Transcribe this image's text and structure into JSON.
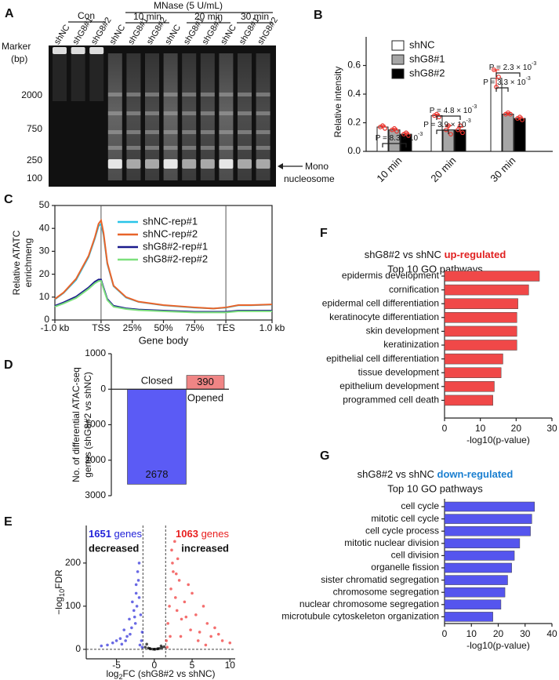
{
  "panel_a": {
    "label": "A",
    "mnase": "MNase (5 U/mL)",
    "con": "Con",
    "times": [
      "10 min",
      "20 min",
      "30 min"
    ],
    "lanes": [
      "shNC",
      "shG8#1",
      "shG8#2",
      "shNC",
      "shG8#1",
      "shG8#2",
      "shNC",
      "shG8#1",
      "shG8#2",
      "shNC",
      "shG8#1",
      "shG8#2"
    ],
    "marker": {
      "title": "Marker",
      "unit": "(bp)",
      "sizes": [
        "2000",
        "750",
        "250",
        "100"
      ]
    },
    "arrow_label": [
      "Mono",
      "nucleosome"
    ]
  },
  "chart_data": [
    {
      "type": "bar",
      "label": "B",
      "ylabel": "Relative intensity",
      "categories": [
        "10 min",
        "20 min",
        "30 min"
      ],
      "series": [
        {
          "name": "shNC",
          "color": "#ffffff",
          "values": [
            0.17,
            0.25,
            0.51
          ],
          "errors": [
            0.01,
            0.01,
            0.06
          ],
          "replicates": [
            [
              0.17,
              0.18,
              0.16
            ],
            [
              0.25,
              0.26,
              0.24
            ],
            [
              0.57,
              0.45,
              0.52
            ]
          ]
        },
        {
          "name": "shG8#1",
          "color": "#a6a6a6",
          "values": [
            0.15,
            0.15,
            0.26
          ],
          "errors": [
            0.01,
            0.03,
            0.01
          ],
          "replicates": [
            [
              0.15,
              0.16,
              0.14
            ],
            [
              0.15,
              0.18,
              0.12
            ],
            [
              0.26,
              0.27,
              0.26
            ]
          ]
        },
        {
          "name": "shG8#2",
          "color": "#000000",
          "values": [
            0.12,
            0.15,
            0.23
          ],
          "errors": [
            0.01,
            0.02,
            0.01
          ],
          "replicates": [
            [
              0.12,
              0.13,
              0.11
            ],
            [
              0.15,
              0.18,
              0.13
            ],
            [
              0.23,
              0.24,
              0.22
            ]
          ]
        }
      ],
      "replicate_color": "#e8312a",
      "ylim": [
        0,
        0.8
      ],
      "yticks": [
        {
          "value": 0,
          "label": "0.0"
        },
        0.2,
        0.4,
        0.6
      ],
      "legend": "top-left",
      "annotations": [
        {
          "text": "P = 8.3 × 10",
          "sup": "-3"
        },
        {
          "text": "P = 4.8 × 10",
          "sup": "-3"
        },
        {
          "text": "P = 3.9 × 10",
          "sup": "-3"
        },
        {
          "text": "P = 2.3 × 10",
          "sup": "-3"
        },
        {
          "text": "P = 3.3 × 10",
          "sup": "-3"
        }
      ]
    },
    {
      "type": "line",
      "label": "C",
      "ylabel": [
        "Relative ATATC",
        "enrichmeng"
      ],
      "xlabel": "Gene body",
      "x": [
        -37,
        -30,
        -20,
        -10,
        -5,
        -2,
        0,
        2,
        5,
        10,
        20,
        30,
        50,
        75,
        90,
        100,
        110,
        120,
        137
      ],
      "series": [
        {
          "name": "shNC-rep#1",
          "color": "#29c4e8",
          "values": [
            9,
            11.8,
            17.5,
            27.5,
            35.5,
            41,
            42,
            37,
            24.5,
            14.8,
            9.8,
            7.9,
            6.4,
            5.4,
            5,
            5.4,
            6.4,
            6.4,
            6.7
          ]
        },
        {
          "name": "shNC-rep#2",
          "color": "#e8642a",
          "values": [
            9.2,
            12,
            18,
            28,
            36,
            42,
            43.5,
            38,
            25,
            15,
            10,
            8,
            6.5,
            5.5,
            5,
            5.5,
            6.5,
            6.5,
            6.8
          ]
        },
        {
          "name": "shG8#2-rep#1",
          "color": "#1a1a8c",
          "values": [
            6.2,
            7.7,
            10.2,
            14.2,
            16.7,
            17.7,
            17.7,
            14.2,
            9.2,
            6.2,
            5.1,
            4.6,
            4.1,
            3.6,
            3.6,
            3.6,
            4.1,
            4.1,
            4.1
          ]
        },
        {
          "name": "shG8#2-rep#2",
          "color": "#7de07d",
          "values": [
            5.8,
            7.2,
            9.6,
            13.6,
            16,
            17,
            17.1,
            13.6,
            8.7,
            5.8,
            4.8,
            4.3,
            3.8,
            3.3,
            3.3,
            3.3,
            3.8,
            3.8,
            3.8
          ]
        }
      ],
      "xlim": [
        -37,
        137
      ],
      "xticks": [
        {
          "value": -37,
          "label": "-1.0 kb"
        },
        {
          "value": 0,
          "label": "TSS"
        },
        {
          "value": 25,
          "label": "25%"
        },
        {
          "value": 50,
          "label": "50%"
        },
        {
          "value": 75,
          "label": "75%"
        },
        {
          "value": 100,
          "label": "TES"
        },
        {
          "value": 137,
          "label": "1.0 kb"
        }
      ],
      "vlines": [
        0,
        100
      ],
      "ylim": [
        0,
        50
      ],
      "yticks": [
        0,
        10,
        20,
        30,
        40,
        50
      ],
      "legend": "top-center"
    },
    {
      "type": "bar",
      "label": "D",
      "ylabel": [
        "No. of differential ATAC-seq",
        "genes (shG8#2 vs shNC)"
      ],
      "categories": [
        "Closed",
        "Opened"
      ],
      "values": [
        -2678,
        390
      ],
      "value_labels": [
        "2678",
        "390"
      ],
      "colors": [
        "#5b5bf5",
        "#f08585"
      ],
      "ylim": [
        -3000,
        1000
      ],
      "yticks": [
        {
          "value": -3000,
          "label": "3000"
        },
        {
          "value": -2000,
          "label": "2000"
        },
        {
          "value": -1000,
          "label": "1000"
        },
        0,
        1000
      ]
    },
    {
      "type": "scatter",
      "label": "E",
      "xlabel": {
        "main": "log",
        "sub": "2",
        "rest": "FC (shG8#2 vs shNC)"
      },
      "ylabel": {
        "main": "−log",
        "sub": "10",
        "rest": "FDR"
      },
      "series": [
        {
          "color": "#2a2ad8",
          "x": [
            -1.6,
            -1.8,
            -2.0,
            -2.1,
            -2.3,
            -2.5,
            -2.7,
            -3.0,
            -3.3,
            -3.6,
            -4.0,
            -4.5,
            -5.0,
            -5.5,
            -6.2,
            -7.0,
            -1.7,
            -1.9,
            -2.2,
            -2.4,
            -2.6,
            -2.9,
            -3.2,
            -3.8,
            -4.3,
            -1.6,
            -2.0,
            -2.4
          ],
          "values": [
            40,
            80,
            120,
            160,
            100,
            60,
            90,
            50,
            70,
            30,
            45,
            25,
            20,
            15,
            10,
            8,
            20,
            10,
            180,
            130,
            75,
            110,
            35,
            20,
            12,
            5,
            200,
            150
          ]
        },
        {
          "color": "#f03030",
          "x": [
            1.6,
            1.8,
            2.0,
            2.2,
            2.5,
            2.8,
            3.0,
            3.3,
            3.6,
            4.0,
            4.5,
            5.0,
            5.5,
            6.0,
            6.5,
            7.0,
            7.5,
            8.0,
            9.0,
            10.0,
            1.7,
            2.1,
            2.4,
            2.7,
            3.1,
            3.5,
            4.2,
            4.8,
            5.8,
            6.8,
            8.5,
            2.3,
            2.9
          ],
          "values": [
            20,
            60,
            100,
            140,
            180,
            120,
            90,
            160,
            70,
            110,
            150,
            130,
            80,
            40,
            100,
            60,
            30,
            50,
            20,
            15,
            5,
            30,
            200,
            250,
            210,
            30,
            75,
            45,
            20,
            10,
            35,
            230,
            175
          ]
        },
        {
          "color": "#000000",
          "x": [
            -1.2,
            -0.8,
            -0.5,
            -0.2,
            0.1,
            0.4,
            0.7,
            1.0,
            1.3,
            -1.0,
            0.0,
            0.9,
            -0.6,
            0.5
          ],
          "values": [
            5,
            3,
            1,
            0.5,
            0.3,
            1,
            2,
            4,
            6,
            12,
            0.2,
            8,
            2,
            1.5
          ]
        }
      ],
      "xlim": [
        -9,
        10.7
      ],
      "xticks": [
        -5,
        0,
        5,
        10
      ],
      "ylim": [
        -22,
        287
      ],
      "yticks": [
        0,
        100,
        200
      ],
      "vlines": [
        -1.5,
        1.5
      ],
      "hlines": [
        0
      ],
      "annotations": [
        {
          "count": "1651",
          "unit": " genes",
          "direction": "decreased",
          "color": "#2323d9"
        },
        {
          "count": "1063",
          "unit": " genes",
          "direction": "increased",
          "color": "#e82020"
        }
      ]
    },
    {
      "type": "barh",
      "label": "F",
      "title": "shG8#2 vs shNC ",
      "title_highlight": "up-regulated",
      "highlight_color": "#e02020",
      "subtitle": "Top 10 GO pathways",
      "categories": [
        "epidermis development",
        "cornification",
        "epidermal cell differentiation",
        "keratinocyte differentiation",
        "skin development",
        "keratinization",
        "epithelial cell differentiation",
        "tissue development",
        "epithelium development",
        "programmed cell death"
      ],
      "values": [
        26.5,
        23.5,
        20.5,
        20.2,
        20.2,
        20.2,
        16.3,
        15.8,
        13.9,
        13.5
      ],
      "color": "#f04848",
      "xlim": [
        0,
        30
      ],
      "xticks": [
        0,
        10,
        20,
        30
      ],
      "xlabel": "-log10(p-value)"
    },
    {
      "type": "barh",
      "label": "G",
      "title": "shG8#2 vs shNC ",
      "title_highlight": "down-regulated",
      "highlight_color": "#1a7fd0",
      "subtitle": "Top 10 GO pathways",
      "categories": [
        "cell cycle",
        "mitotic cell cycle",
        "cell cycle process",
        "mitotic nuclear division",
        "cell division",
        "organelle fission",
        "sister chromatid segregation",
        "chromosome segregation",
        "nuclear chromosome segregation",
        "microtubule cytoskeleton organization"
      ],
      "values": [
        33.5,
        32.5,
        32,
        28,
        26,
        25,
        23.5,
        22.5,
        21,
        18
      ],
      "color": "#5555ee",
      "xlim": [
        0,
        40
      ],
      "xticks": [
        0,
        10,
        20,
        30,
        40
      ],
      "xlabel": "-log10(p-value)"
    }
  ]
}
